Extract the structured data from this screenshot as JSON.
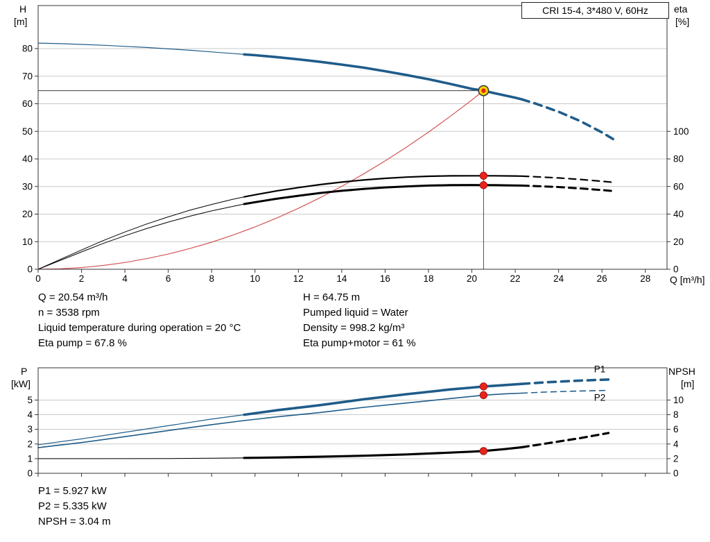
{
  "colors": {
    "curve_blue": "#1f5c8a",
    "curve_black": "#000000",
    "system_red": "#d45555",
    "dot_red": "#e8251d",
    "duty_yellow": "#ffd400",
    "grid": "#c9c9c9",
    "axis": "#333333"
  },
  "info_top": {
    "left": [
      "Q = 20.54 m³/h",
      "n = 3538 rpm",
      "Liquid temperature during operation = 20 °C",
      "Eta pump = 67.8 %"
    ],
    "right": [
      "H = 64.75 m",
      "Pumped liquid = Water",
      "Density = 998.2 kg/m³",
      "Eta pump+motor = 61 %"
    ]
  },
  "info_bottom": [
    "P1 = 5.927 kW",
    "P2 = 5.335 kW",
    "NPSH = 3.04 m"
  ],
  "chart_data": [
    {
      "type": "line",
      "name": "hq-eta-chart",
      "title": "CRI 15-4, 3*480 V, 60Hz",
      "x_label": "Q [m³/h]",
      "y_left_label": [
        "H",
        "[m]"
      ],
      "y_right_label": [
        "eta",
        "[%]"
      ],
      "x_range": [
        0,
        29
      ],
      "x_ticks": [
        0,
        2,
        4,
        6,
        8,
        10,
        12,
        14,
        16,
        18,
        20,
        22,
        24,
        26,
        28
      ],
      "show_x_tick_labels": true,
      "y_left_range": [
        0,
        95.6
      ],
      "y_left_ticks": [
        0,
        10,
        20,
        30,
        40,
        50,
        60,
        70,
        80
      ],
      "y_right_ticks": [
        0,
        20,
        40,
        60,
        80,
        100
      ],
      "right_to_left_scale": 0.5,
      "grid": "horizontal",
      "series": [
        {
          "name": "system-curve",
          "axis": "left",
          "color": "#d45555",
          "width": 1.2,
          "dash": "",
          "points": [
            [
              0,
              0
            ],
            [
              1,
              0.15
            ],
            [
              2,
              0.61
            ],
            [
              3,
              1.38
            ],
            [
              4,
              2.45
            ],
            [
              5,
              3.84
            ],
            [
              6,
              5.52
            ],
            [
              7,
              7.52
            ],
            [
              8,
              9.82
            ],
            [
              9,
              12.43
            ],
            [
              10,
              15.34
            ],
            [
              11,
              18.57
            ],
            [
              12,
              22.09
            ],
            [
              13,
              25.93
            ],
            [
              14,
              30.07
            ],
            [
              15,
              34.52
            ],
            [
              16,
              39.27
            ],
            [
              17,
              44.34
            ],
            [
              18,
              49.71
            ],
            [
              19,
              55.39
            ],
            [
              20,
              61.37
            ],
            [
              20.54,
              64.75
            ]
          ]
        },
        {
          "name": "eta-pump-curve-thin",
          "axis": "right",
          "color": "#000000",
          "width": 1,
          "dash": "",
          "points": [
            [
              0,
              0
            ],
            [
              1,
              7
            ],
            [
              2,
              14
            ],
            [
              3,
              20.8
            ],
            [
              4,
              27
            ],
            [
              5,
              32.8
            ],
            [
              6,
              38
            ],
            [
              7,
              42.8
            ],
            [
              8,
              47
            ],
            [
              9,
              50.8
            ],
            [
              9.5,
              52.5
            ]
          ]
        },
        {
          "name": "eta-pump-curve",
          "axis": "right",
          "color": "#000000",
          "width": 2.2,
          "dash": "",
          "points": [
            [
              9.5,
              52.5
            ],
            [
              10,
              54
            ],
            [
              11,
              56.8
            ],
            [
              12,
              59.2
            ],
            [
              13,
              61.4
            ],
            [
              14,
              63.2
            ],
            [
              15,
              64.7
            ],
            [
              16,
              65.9
            ],
            [
              17,
              66.8
            ],
            [
              18,
              67.4
            ],
            [
              19,
              67.7
            ],
            [
              20,
              67.8
            ],
            [
              20.54,
              67.8
            ],
            [
              21,
              67.8
            ],
            [
              22,
              67.6
            ],
            [
              22.3,
              67.5
            ]
          ]
        },
        {
          "name": "eta-pump-curve-extrapolated",
          "axis": "right",
          "color": "#000000",
          "width": 2.2,
          "dash": "10 7",
          "points": [
            [
              22.3,
              67.5
            ],
            [
              23,
              67.0
            ],
            [
              24,
              66.2
            ],
            [
              25,
              65.1
            ],
            [
              26,
              63.8
            ],
            [
              26.6,
              62.9
            ]
          ]
        },
        {
          "name": "eta-pump-motor-curve-thin",
          "axis": "right",
          "color": "#000000",
          "width": 1,
          "dash": "",
          "points": [
            [
              0,
              0
            ],
            [
              1,
              6.3
            ],
            [
              2,
              12.6
            ],
            [
              3,
              18.7
            ],
            [
              4,
              24.3
            ],
            [
              5,
              29.5
            ],
            [
              6,
              34.2
            ],
            [
              7,
              38.5
            ],
            [
              8,
              42.3
            ],
            [
              9,
              45.7
            ],
            [
              9.5,
              47.3
            ]
          ]
        },
        {
          "name": "eta-pump-motor-curve",
          "axis": "right",
          "color": "#000000",
          "width": 3,
          "dash": "",
          "points": [
            [
              9.5,
              47.3
            ],
            [
              10,
              48.6
            ],
            [
              11,
              51.1
            ],
            [
              12,
              53.3
            ],
            [
              13,
              55.3
            ],
            [
              14,
              56.9
            ],
            [
              15,
              58.2
            ],
            [
              16,
              59.3
            ],
            [
              17,
              60.1
            ],
            [
              18,
              60.7
            ],
            [
              19,
              61.0
            ],
            [
              20,
              61.1
            ],
            [
              20.54,
              61.0
            ],
            [
              21,
              61.0
            ],
            [
              22,
              60.8
            ],
            [
              22.3,
              60.7
            ]
          ]
        },
        {
          "name": "eta-pump-motor-curve-extrapolated",
          "axis": "right",
          "color": "#000000",
          "width": 3,
          "dash": "10 7",
          "points": [
            [
              22.3,
              60.7
            ],
            [
              23,
              60.3
            ],
            [
              24,
              59.6
            ],
            [
              25,
              58.6
            ],
            [
              26,
              57.4
            ],
            [
              26.6,
              56.6
            ]
          ]
        },
        {
          "name": "head-curve-thin",
          "axis": "left",
          "color": "#1f5c8a",
          "width": 1.2,
          "dash": "",
          "points": [
            [
              0,
              82
            ],
            [
              1,
              81.8
            ],
            [
              2,
              81.5
            ],
            [
              3,
              81.2
            ],
            [
              4,
              80.8
            ],
            [
              5,
              80.4
            ],
            [
              6,
              79.9
            ],
            [
              7,
              79.4
            ],
            [
              8,
              78.8
            ],
            [
              9,
              78.2
            ],
            [
              9.5,
              77.9
            ]
          ]
        },
        {
          "name": "head-curve",
          "axis": "left",
          "color": "#1f5c8a",
          "width": 3.6,
          "dash": "",
          "points": [
            [
              9.5,
              77.9
            ],
            [
              10,
              77.6
            ],
            [
              11,
              76.9
            ],
            [
              12,
              76.1
            ],
            [
              13,
              75.2
            ],
            [
              14,
              74.2
            ],
            [
              15,
              73.1
            ],
            [
              16,
              71.8
            ],
            [
              17,
              70.4
            ],
            [
              18,
              68.9
            ],
            [
              19,
              67.2
            ],
            [
              20,
              65.4
            ],
            [
              20.54,
              64.75
            ],
            [
              21,
              63.9
            ],
            [
              22,
              62.2
            ],
            [
              22.3,
              61.6
            ]
          ]
        },
        {
          "name": "head-curve-extrapolated",
          "axis": "left",
          "color": "#1f5c8a",
          "width": 3.6,
          "dash": "11 8",
          "points": [
            [
              22.3,
              61.6
            ],
            [
              23,
              59.9
            ],
            [
              24,
              57.1
            ],
            [
              25,
              53.7
            ],
            [
              26,
              49.6
            ],
            [
              26.6,
              46.8
            ]
          ]
        }
      ],
      "guides": [
        {
          "type": "v",
          "x": 20.54,
          "y1": 0,
          "y2": 64.75
        },
        {
          "type": "h",
          "y": 64.75,
          "x1": 0,
          "x2": 20.54
        }
      ],
      "markers": [
        {
          "shape": "dot",
          "x": 20.54,
          "y": 67.8,
          "axis": "right",
          "name": "eta-pump-duty-dot"
        },
        {
          "shape": "dot",
          "x": 20.54,
          "y": 61,
          "axis": "right",
          "name": "eta-pump-motor-duty-dot"
        },
        {
          "shape": "duty",
          "x": 20.54,
          "y": 64.75,
          "axis": "left",
          "name": "operating-point-marker"
        }
      ],
      "annotations": []
    },
    {
      "type": "line",
      "name": "power-npsh-chart",
      "title": "",
      "x_label": "",
      "y_left_label": [
        "P",
        "[kW]"
      ],
      "y_right_label": [
        "NPSH",
        "[m]"
      ],
      "x_range": [
        0,
        29
      ],
      "x_ticks": [
        0,
        2,
        4,
        6,
        8,
        10,
        12,
        14,
        16,
        18,
        20,
        22,
        24,
        26,
        28
      ],
      "show_x_tick_labels": false,
      "y_left_range": [
        0,
        7.2
      ],
      "y_left_ticks": [
        0,
        1,
        2,
        3,
        4,
        5
      ],
      "y_right_ticks": [
        0,
        2,
        4,
        6,
        8,
        10
      ],
      "right_to_left_scale": 0.5,
      "grid": "horizontal",
      "series": [
        {
          "name": "p1-curve-thin",
          "axis": "left",
          "color": "#1f5c8a",
          "width": 1.2,
          "dash": "",
          "points": [
            [
              0,
              1.95
            ],
            [
              2,
              2.35
            ],
            [
              4,
              2.8
            ],
            [
              6,
              3.25
            ],
            [
              8,
              3.7
            ],
            [
              9.5,
              4.0
            ]
          ]
        },
        {
          "name": "p1-curve",
          "axis": "left",
          "color": "#1f5c8a",
          "width": 3.6,
          "dash": "",
          "points": [
            [
              9.5,
              4.0
            ],
            [
              11,
              4.3
            ],
            [
              13,
              4.65
            ],
            [
              15,
              5.05
            ],
            [
              17,
              5.4
            ],
            [
              19,
              5.72
            ],
            [
              20,
              5.85
            ],
            [
              20.54,
              5.927
            ],
            [
              21.5,
              6.02
            ],
            [
              22.3,
              6.1
            ]
          ]
        },
        {
          "name": "p1-curve-extrapolated",
          "axis": "left",
          "color": "#1f5c8a",
          "width": 3.6,
          "dash": "11 8",
          "points": [
            [
              22.3,
              6.1
            ],
            [
              23.5,
              6.22
            ],
            [
              25,
              6.33
            ],
            [
              26.3,
              6.4
            ]
          ]
        },
        {
          "name": "p2-curve",
          "axis": "left",
          "color": "#1f5c8a",
          "width": 1.6,
          "dash": "",
          "points": [
            [
              0,
              1.75
            ],
            [
              2,
              2.1
            ],
            [
              4,
              2.5
            ],
            [
              6,
              2.92
            ],
            [
              8,
              3.32
            ],
            [
              9.5,
              3.6
            ],
            [
              11,
              3.85
            ],
            [
              13,
              4.15
            ],
            [
              15,
              4.5
            ],
            [
              17,
              4.8
            ],
            [
              19,
              5.1
            ],
            [
              20,
              5.25
            ],
            [
              20.54,
              5.335
            ],
            [
              21.5,
              5.42
            ],
            [
              22.3,
              5.47
            ]
          ]
        },
        {
          "name": "p2-curve-extrapolated",
          "axis": "left",
          "color": "#1f5c8a",
          "width": 1.6,
          "dash": "8 6",
          "points": [
            [
              22.3,
              5.47
            ],
            [
              23.5,
              5.55
            ],
            [
              25,
              5.62
            ],
            [
              26.3,
              5.66
            ]
          ]
        },
        {
          "name": "npsh-curve-thin",
          "axis": "right",
          "color": "#000000",
          "width": 1,
          "dash": "",
          "points": [
            [
              0,
              2.0
            ],
            [
              3,
              2.0
            ],
            [
              6,
              2.02
            ],
            [
              8,
              2.06
            ],
            [
              9.5,
              2.1
            ]
          ]
        },
        {
          "name": "npsh-curve",
          "axis": "right",
          "color": "#000000",
          "width": 3.2,
          "dash": "",
          "points": [
            [
              9.5,
              2.1
            ],
            [
              11,
              2.16
            ],
            [
              13,
              2.26
            ],
            [
              15,
              2.4
            ],
            [
              17,
              2.58
            ],
            [
              19,
              2.82
            ],
            [
              20,
              2.96
            ],
            [
              20.54,
              3.04
            ],
            [
              21.5,
              3.3
            ],
            [
              22.3,
              3.55
            ]
          ]
        },
        {
          "name": "npsh-curve-extrapolated",
          "axis": "right",
          "color": "#000000",
          "width": 3.2,
          "dash": "10 7",
          "points": [
            [
              22.3,
              3.55
            ],
            [
              23.5,
              4.1
            ],
            [
              25,
              4.8
            ],
            [
              26.3,
              5.5
            ]
          ]
        }
      ],
      "guides": [],
      "markers": [
        {
          "shape": "dot",
          "x": 20.54,
          "y": 5.927,
          "axis": "left",
          "name": "p1-duty-dot"
        },
        {
          "shape": "dot",
          "x": 20.54,
          "y": 5.335,
          "axis": "left",
          "name": "p2-duty-dot"
        },
        {
          "shape": "dot",
          "x": 20.54,
          "y": 3.04,
          "axis": "right",
          "name": "npsh-duty-dot"
        }
      ],
      "annotations": [
        {
          "text": "P1",
          "x": 25.9,
          "y": 6.9,
          "color": "#1f5c8a",
          "name": "p1-curve-label"
        },
        {
          "text": "P2",
          "x": 25.9,
          "y": 4.95,
          "color": "#1f5c8a",
          "name": "p2-curve-label"
        }
      ]
    }
  ]
}
